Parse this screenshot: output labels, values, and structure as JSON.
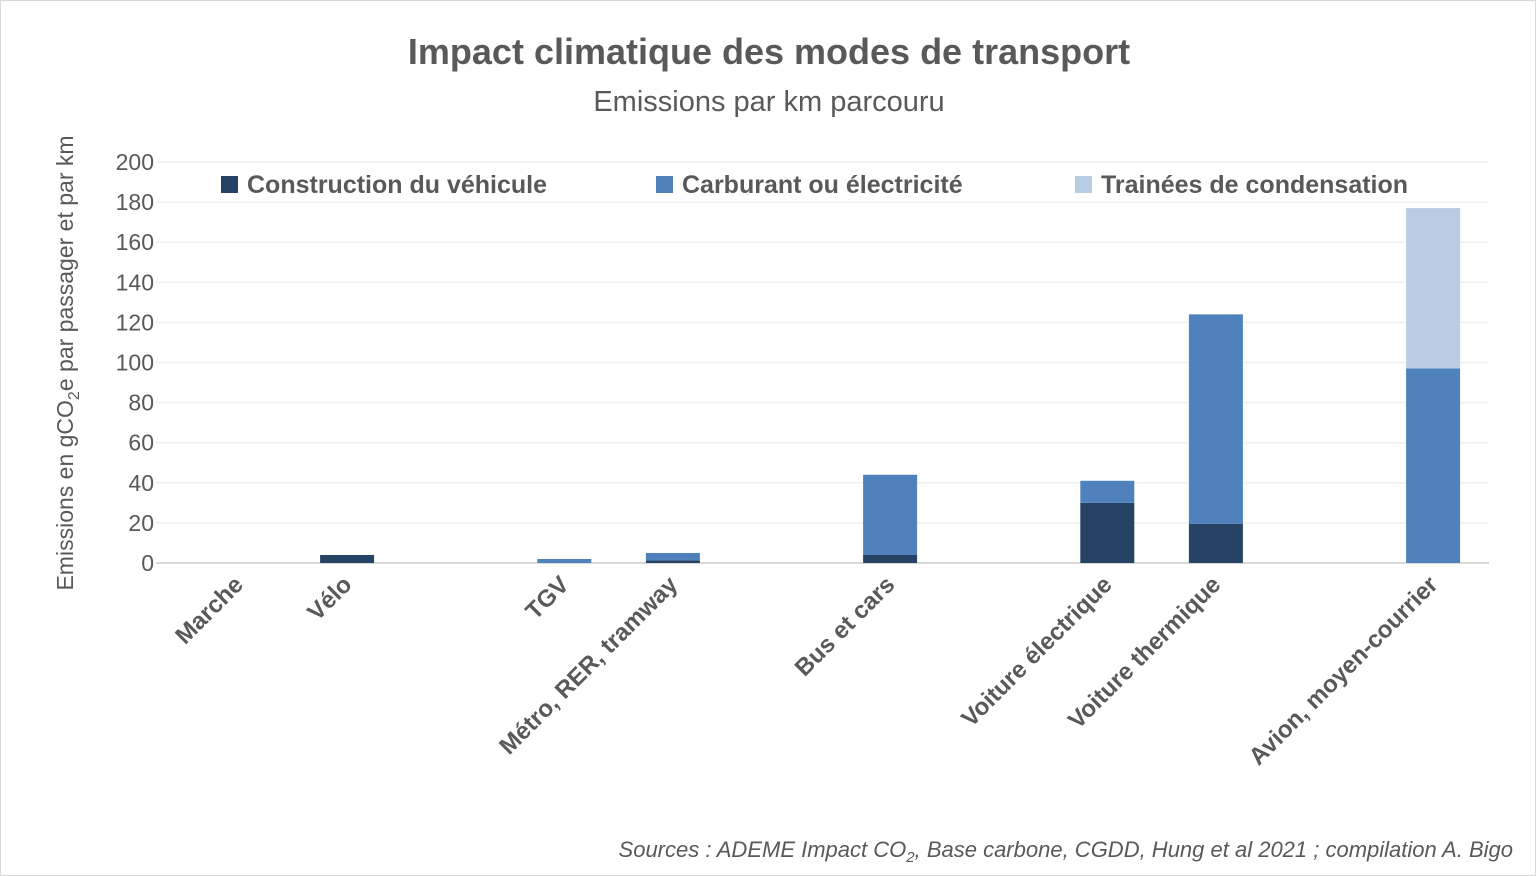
{
  "chart_data": {
    "type": "bar",
    "stacked": true,
    "title": "Impact climatique des modes de transport",
    "subtitle": "Emissions par km parcouru",
    "ylabel_main": "Emissions en gCO",
    "ylabel_sub": "2",
    "ylabel_rest": "e par passager et par km",
    "ylim": [
      0,
      200
    ],
    "yticks": [
      0,
      20,
      40,
      60,
      80,
      100,
      120,
      140,
      160,
      180,
      200
    ],
    "grid": true,
    "legend_position": "top",
    "categories": [
      "Marche",
      "Vélo",
      "",
      "TGV",
      "Métro, RER, tramway",
      "",
      "Bus et cars",
      "",
      "Voiture électrique",
      "Voiture thermique",
      "",
      "Avion, moyen-courrier"
    ],
    "series": [
      {
        "name": "Construction du véhicule",
        "color": "#264265",
        "values": [
          0,
          4,
          null,
          0,
          1.3,
          null,
          4,
          null,
          30,
          19.5,
          null,
          0
        ]
      },
      {
        "name": "Carburant ou électricité",
        "color": "#4f81bd",
        "values": [
          0,
          0,
          null,
          2,
          3.7,
          null,
          40,
          null,
          11,
          104.5,
          null,
          97
        ]
      },
      {
        "name": "Trainées de condensation",
        "color": "#b8cce4",
        "values": [
          0,
          0,
          null,
          0,
          0,
          null,
          0,
          null,
          0,
          0,
          null,
          80
        ]
      }
    ],
    "source_main": "Sources : ADEME Impact CO",
    "source_sub": "2",
    "source_rest": ", Base carbone, CGDD, Hung et al 2021 ; compilation A. Bigo"
  }
}
